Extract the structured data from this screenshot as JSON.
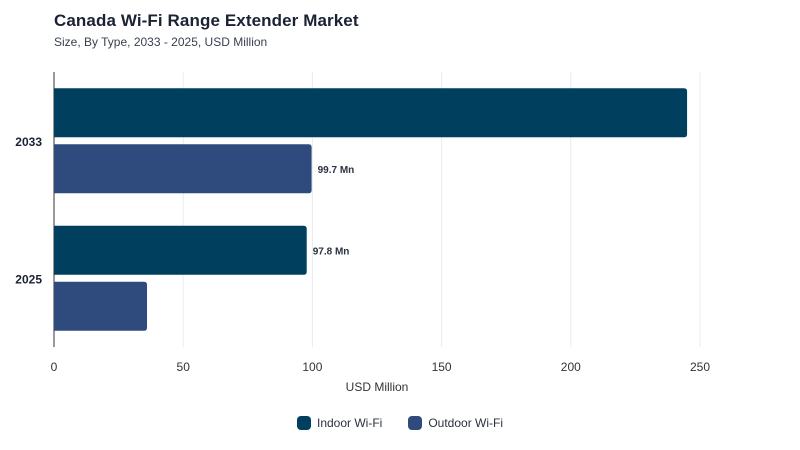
{
  "title": "Canada Wi-Fi Range Extender Market",
  "subtitle": "Size, By Type, 2033 - 2025, USD Million",
  "colors": {
    "indoor": "#013f5e",
    "outdoor": "#2f4a7c",
    "grid": "#e9ebee",
    "axis": "#333333"
  },
  "chart_data": {
    "type": "bar",
    "orientation": "horizontal",
    "categories": [
      "2033",
      "2025"
    ],
    "series": [
      {
        "name": "Indoor Wi-Fi",
        "values": [
          245,
          97.8
        ],
        "labels": [
          "",
          "97.8 Mn"
        ]
      },
      {
        "name": "Outdoor Wi-Fi",
        "values": [
          99.7,
          36
        ],
        "labels": [
          "99.7 Mn",
          ""
        ]
      }
    ],
    "xlabel": "USD Million",
    "xlim": [
      0,
      250
    ],
    "xticks": [
      "0",
      "50",
      "100",
      "150",
      "200",
      "250"
    ],
    "grid": true,
    "legend_position": "bottom"
  }
}
